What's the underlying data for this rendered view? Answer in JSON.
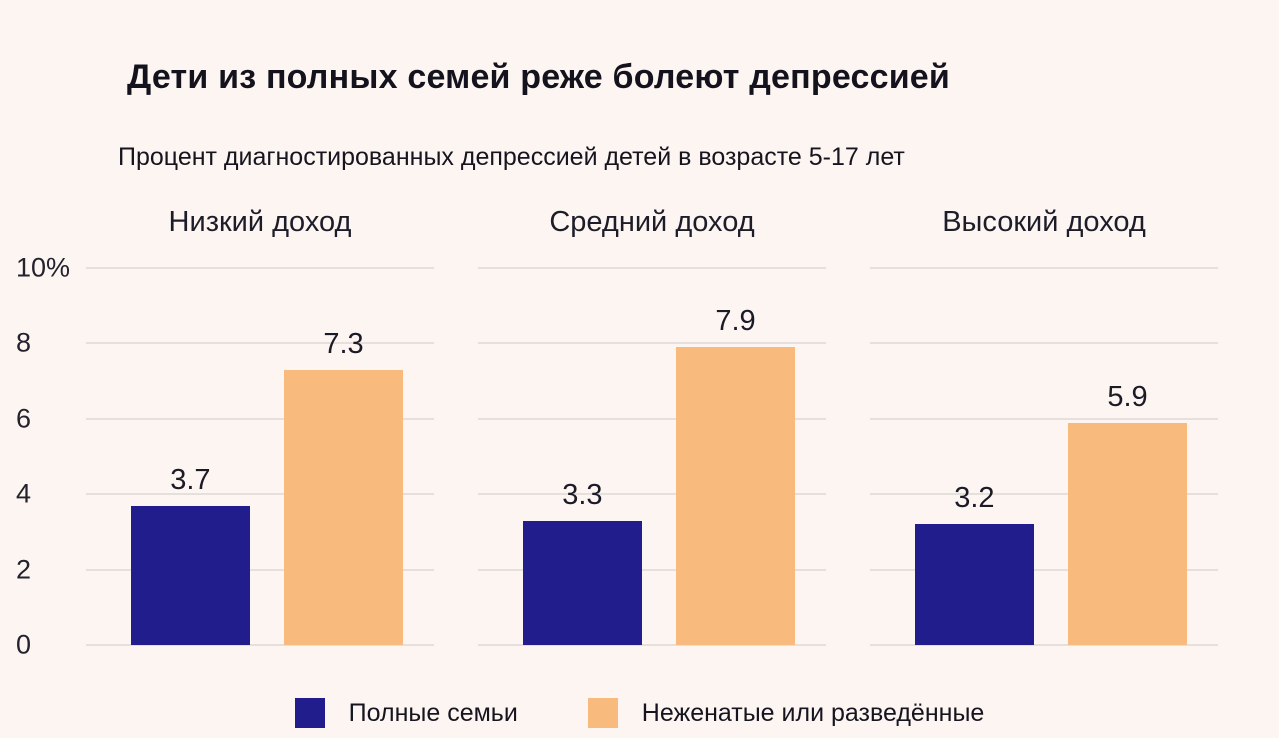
{
  "colors": {
    "background": "#fcf5f1",
    "bar_complete_families": "#221d8c",
    "bar_single_divorced": "#f9ba7e",
    "gridline": "#e6e0dd",
    "text": "#16151f"
  },
  "chart_data": {
    "type": "bar",
    "title": "Дети из полных семей реже болеют депрессией",
    "subtitle": "Процент диагностированных депрессией детей в возрасте 5-17 лет",
    "groups": [
      "Низкий доход",
      "Средний доход",
      "Высокий доход"
    ],
    "series": [
      {
        "name": "Полные семьи",
        "color": "#221d8c",
        "values": [
          3.7,
          3.3,
          3.2
        ]
      },
      {
        "name": "Неженатые или разведённые",
        "color": "#f9ba7e",
        "values": [
          7.3,
          7.9,
          5.9
        ]
      }
    ],
    "ylim": [
      0,
      10
    ],
    "yticks": [
      {
        "value": 10,
        "label": "10%"
      },
      {
        "value": 8,
        "label": "8"
      },
      {
        "value": 6,
        "label": "6"
      },
      {
        "value": 4,
        "label": "4"
      },
      {
        "value": 2,
        "label": "2"
      },
      {
        "value": 0,
        "label": "0"
      }
    ],
    "grid": true,
    "legend_position": "bottom",
    "value_labels": "above bars, one decimal"
  },
  "legend": {
    "items": [
      {
        "label": "Полные семьи",
        "color": "#221d8c"
      },
      {
        "label": "Неженатые или разведённые",
        "color": "#f9ba7e"
      }
    ]
  }
}
